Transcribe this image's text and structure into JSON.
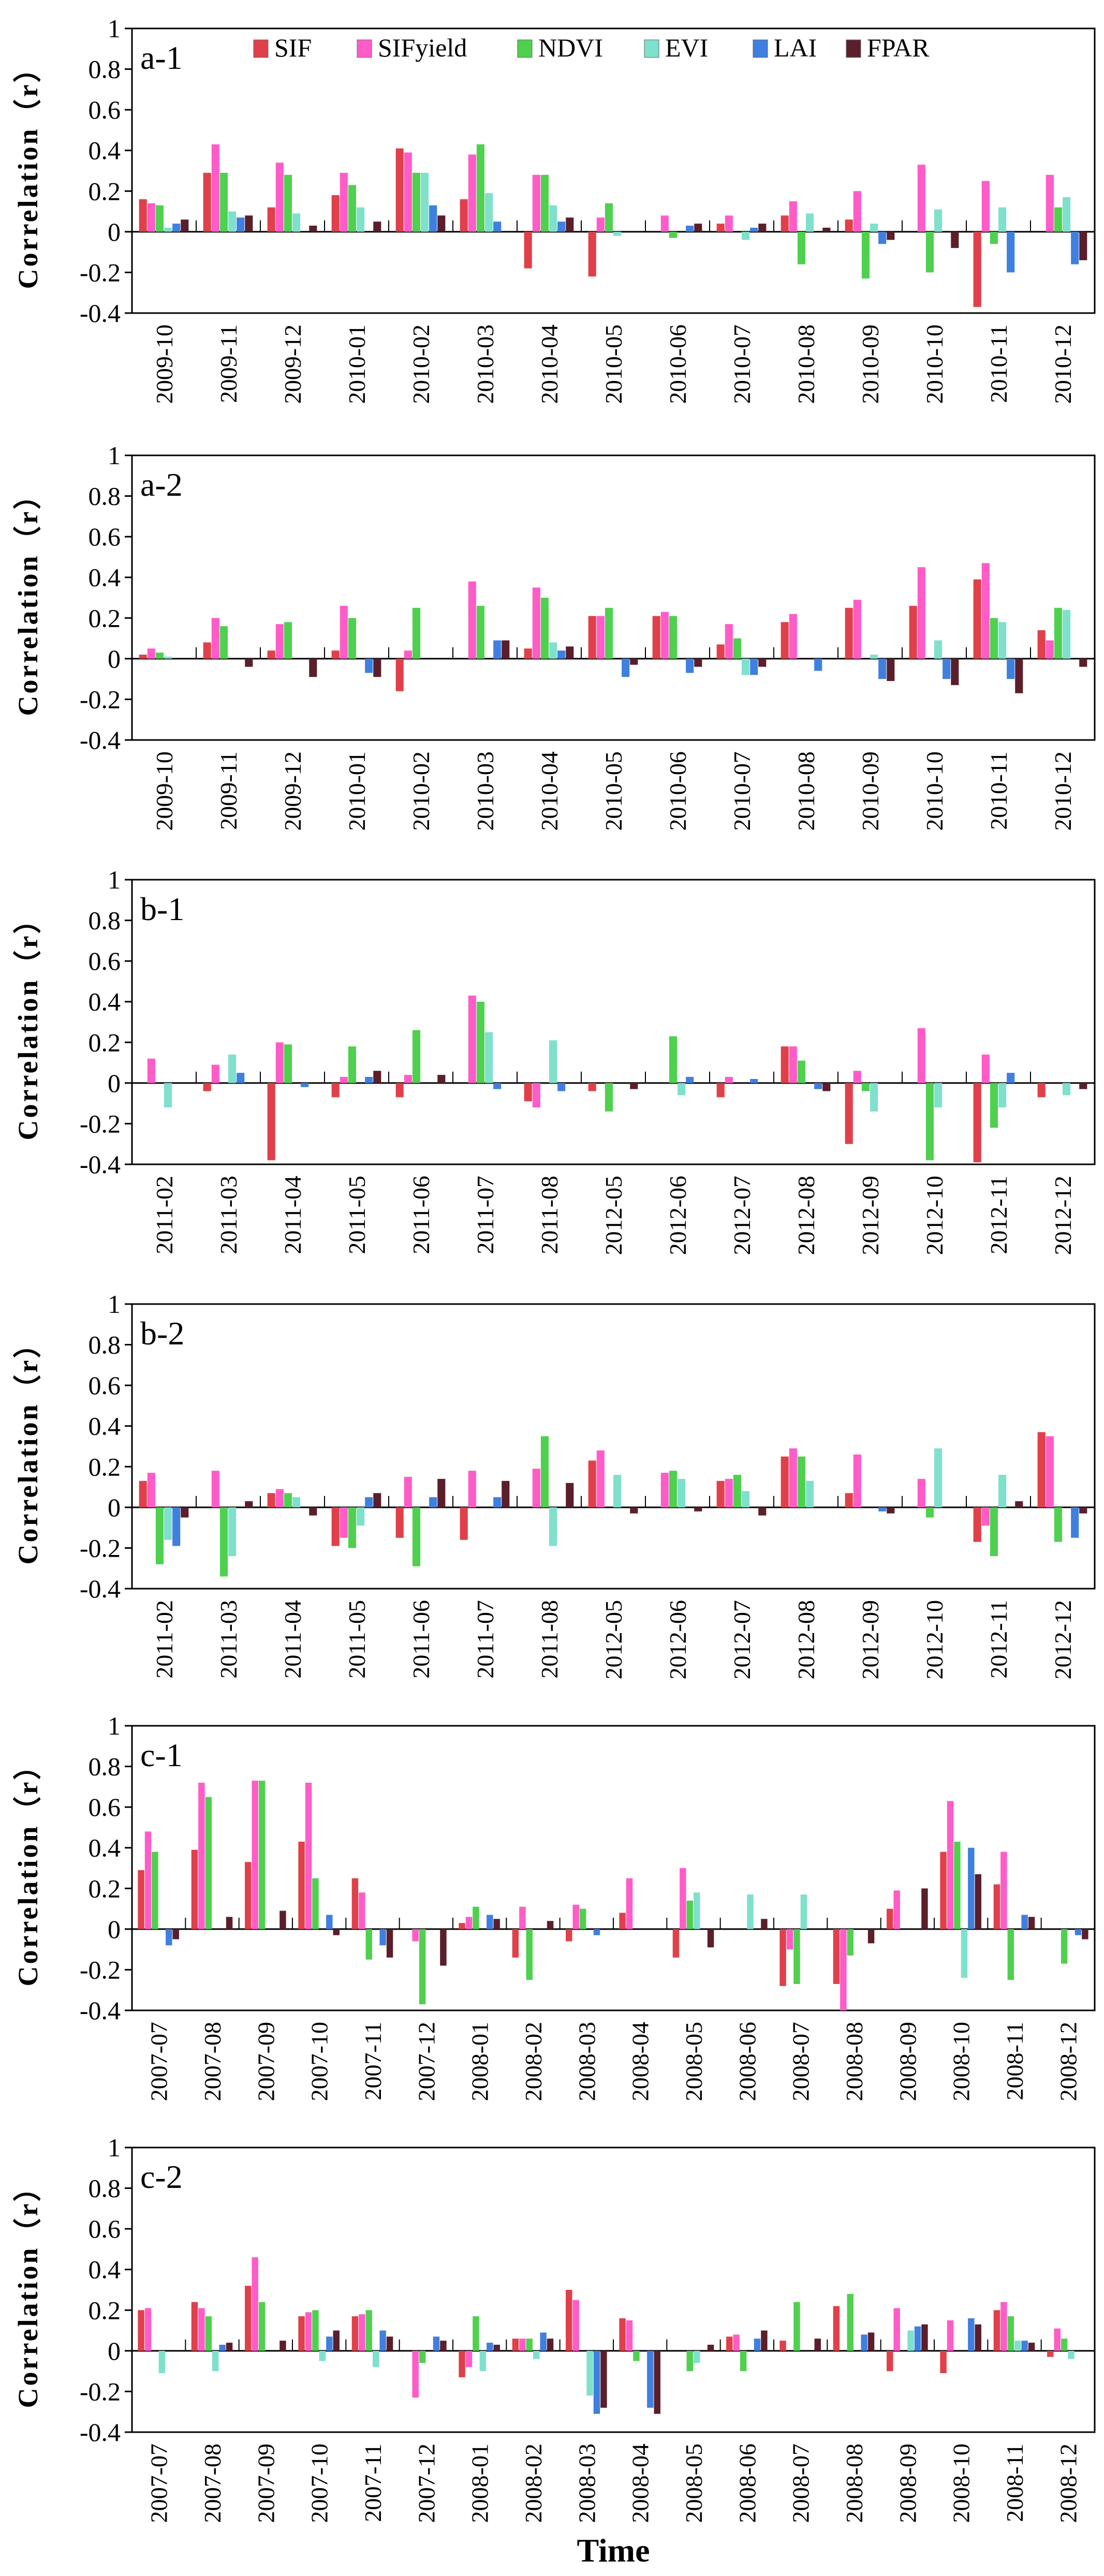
{
  "figure": {
    "xlabel": "Time"
  },
  "legend": {
    "items": [
      {
        "name": "SIF",
        "color": "#e0404a"
      },
      {
        "name": "SIFyield",
        "color": "#ff5cc8"
      },
      {
        "name": "NDVI",
        "color": "#4fd04f"
      },
      {
        "name": "EVI",
        "color": "#7fe0cc"
      },
      {
        "name": "LAI",
        "color": "#3f7fe0"
      },
      {
        "name": "FPAR",
        "color": "#5a1f2a"
      }
    ]
  },
  "chart_data": [
    {
      "type": "bar",
      "label": "a-1",
      "ylabel": "Correlation（r）",
      "ylim": [
        -0.4,
        1
      ],
      "yticks": [
        1,
        0.8,
        0.6,
        0.4,
        0.2,
        0,
        -0.2,
        -0.4
      ],
      "categories": [
        "2009-10",
        "2009-11",
        "2009-12",
        "2010-01",
        "2010-02",
        "2010-03",
        "2010-04",
        "2010-05",
        "2010-06",
        "2010-07",
        "2010-08",
        "2010-09",
        "2010-10",
        "2010-11",
        "2010-12"
      ],
      "series": [
        {
          "name": "SIF",
          "values": [
            0.16,
            0.29,
            0.12,
            0.18,
            0.41,
            0.16,
            -0.18,
            -0.22,
            0.0,
            0.04,
            0.08,
            0.06,
            0.0,
            -0.37,
            0.0
          ]
        },
        {
          "name": "SIFyield",
          "values": [
            0.14,
            0.43,
            0.34,
            0.29,
            0.39,
            0.38,
            0.28,
            0.07,
            0.08,
            0.08,
            0.15,
            0.2,
            0.33,
            0.25,
            0.28
          ]
        },
        {
          "name": "NDVI",
          "values": [
            0.13,
            0.29,
            0.28,
            0.23,
            0.29,
            0.43,
            0.28,
            0.14,
            -0.03,
            0.0,
            -0.16,
            -0.23,
            -0.2,
            -0.06,
            0.12
          ]
        },
        {
          "name": "EVI",
          "values": [
            0.02,
            0.1,
            0.09,
            0.12,
            0.29,
            0.19,
            0.13,
            -0.02,
            0.0,
            -0.04,
            0.09,
            0.04,
            0.11,
            0.12,
            0.17
          ]
        },
        {
          "name": "LAI",
          "values": [
            0.04,
            0.07,
            0.0,
            0.0,
            0.13,
            0.05,
            0.05,
            0.0,
            0.03,
            0.02,
            0.0,
            -0.06,
            0.0,
            -0.2,
            -0.16
          ]
        },
        {
          "name": "FPAR",
          "values": [
            0.06,
            0.08,
            0.03,
            0.05,
            0.08,
            0.0,
            0.07,
            0.0,
            0.04,
            0.04,
            0.02,
            -0.04,
            -0.08,
            0.0,
            -0.14
          ]
        }
      ]
    },
    {
      "type": "bar",
      "label": "a-2",
      "ylabel": "Correlation（r）",
      "ylim": [
        -0.4,
        1
      ],
      "yticks": [
        1,
        0.8,
        0.6,
        0.4,
        0.2,
        0,
        -0.2,
        -0.4
      ],
      "categories": [
        "2009-10",
        "2009-11",
        "2009-12",
        "2010-01",
        "2010-02",
        "2010-03",
        "2010-04",
        "2010-05",
        "2010-06",
        "2010-07",
        "2010-08",
        "2010-09",
        "2010-10",
        "2010-11",
        "2010-12"
      ],
      "series": [
        {
          "name": "SIF",
          "values": [
            0.02,
            0.08,
            0.04,
            0.04,
            -0.16,
            0.0,
            0.05,
            0.21,
            0.21,
            0.07,
            0.18,
            0.25,
            0.26,
            0.39,
            0.14
          ]
        },
        {
          "name": "SIFyield",
          "values": [
            0.05,
            0.2,
            0.17,
            0.26,
            0.04,
            0.38,
            0.35,
            0.21,
            0.23,
            0.17,
            0.22,
            0.29,
            0.45,
            0.47,
            0.09
          ]
        },
        {
          "name": "NDVI",
          "values": [
            0.03,
            0.16,
            0.18,
            0.2,
            0.25,
            0.26,
            0.3,
            0.25,
            0.21,
            0.1,
            0.0,
            0.0,
            0.0,
            0.2,
            0.25
          ]
        },
        {
          "name": "EVI",
          "values": [
            0.01,
            0.0,
            0.0,
            0.0,
            0.0,
            0.0,
            0.08,
            0.0,
            0.0,
            -0.08,
            0.0,
            0.02,
            0.09,
            0.18,
            0.24
          ]
        },
        {
          "name": "LAI",
          "values": [
            0.0,
            0.0,
            0.0,
            -0.07,
            0.0,
            0.09,
            0.04,
            -0.09,
            -0.07,
            -0.08,
            -0.06,
            -0.1,
            -0.1,
            -0.1,
            0.0
          ]
        },
        {
          "name": "FPAR",
          "values": [
            0.0,
            -0.04,
            -0.09,
            -0.09,
            0.0,
            0.09,
            0.06,
            -0.03,
            -0.04,
            -0.04,
            0.0,
            -0.11,
            -0.13,
            -0.17,
            -0.04
          ]
        }
      ]
    },
    {
      "type": "bar",
      "label": "b-1",
      "ylabel": "Correlation（r）",
      "ylim": [
        -0.4,
        1
      ],
      "yticks": [
        1,
        0.8,
        0.6,
        0.4,
        0.2,
        0,
        -0.2,
        -0.4
      ],
      "categories": [
        "2011-02",
        "2011-03",
        "2011-04",
        "2011-05",
        "2011-06",
        "2011-07",
        "2011-08",
        "2012-05",
        "2012-06",
        "2012-07",
        "2012-08",
        "2012-09",
        "2012-10",
        "2012-11",
        "2012-12"
      ],
      "series": [
        {
          "name": "SIF",
          "values": [
            0.0,
            -0.04,
            -0.38,
            -0.07,
            -0.07,
            0.0,
            -0.09,
            -0.04,
            0.0,
            -0.07,
            0.18,
            -0.3,
            0.0,
            -0.39,
            -0.07
          ]
        },
        {
          "name": "SIFyield",
          "values": [
            0.12,
            0.09,
            0.2,
            0.03,
            0.04,
            0.43,
            -0.12,
            0.0,
            0.0,
            0.03,
            0.18,
            0.06,
            0.27,
            0.14,
            0.0
          ]
        },
        {
          "name": "NDVI",
          "values": [
            0.0,
            0.0,
            0.19,
            0.18,
            0.26,
            0.4,
            0.0,
            -0.14,
            0.23,
            0.0,
            0.11,
            -0.04,
            -0.38,
            -0.22,
            0.0
          ]
        },
        {
          "name": "EVI",
          "values": [
            -0.12,
            0.14,
            0.0,
            0.0,
            0.0,
            0.25,
            0.21,
            0.0,
            -0.06,
            0.0,
            0.0,
            -0.14,
            -0.12,
            -0.12,
            -0.06
          ]
        },
        {
          "name": "LAI",
          "values": [
            0.0,
            0.05,
            -0.02,
            0.03,
            0.0,
            -0.03,
            -0.04,
            0.0,
            0.03,
            0.02,
            -0.03,
            0.0,
            0.0,
            0.05,
            0.0
          ]
        },
        {
          "name": "FPAR",
          "values": [
            0.0,
            0.0,
            0.0,
            0.06,
            0.04,
            0.0,
            0.0,
            -0.03,
            0.0,
            0.0,
            -0.04,
            0.0,
            0.0,
            0.0,
            -0.03
          ]
        }
      ]
    },
    {
      "type": "bar",
      "label": "b-2",
      "ylabel": "Correlation（r）",
      "ylim": [
        -0.4,
        1
      ],
      "yticks": [
        1,
        0.8,
        0.6,
        0.4,
        0.2,
        0,
        -0.2,
        -0.4
      ],
      "categories": [
        "2011-02",
        "2011-03",
        "2011-04",
        "2011-05",
        "2011-06",
        "2011-07",
        "2011-08",
        "2012-05",
        "2012-06",
        "2012-07",
        "2012-08",
        "2012-09",
        "2012-10",
        "2012-11",
        "2012-12"
      ],
      "series": [
        {
          "name": "SIF",
          "values": [
            0.13,
            0.0,
            0.07,
            -0.19,
            -0.15,
            -0.16,
            0.0,
            0.23,
            0.0,
            0.13,
            0.25,
            0.07,
            0.0,
            -0.17,
            0.37
          ]
        },
        {
          "name": "SIFyield",
          "values": [
            0.17,
            0.18,
            0.09,
            -0.15,
            0.15,
            0.18,
            0.19,
            0.28,
            0.17,
            0.14,
            0.29,
            0.26,
            0.14,
            -0.09,
            0.35
          ]
        },
        {
          "name": "NDVI",
          "values": [
            -0.28,
            -0.34,
            0.07,
            -0.2,
            -0.29,
            0.0,
            0.35,
            0.0,
            0.18,
            0.16,
            0.25,
            0.0,
            -0.05,
            -0.24,
            -0.17
          ]
        },
        {
          "name": "EVI",
          "values": [
            -0.16,
            -0.24,
            0.05,
            -0.09,
            0.0,
            0.0,
            -0.19,
            0.16,
            0.14,
            0.08,
            0.13,
            0.0,
            0.29,
            0.16,
            0.0
          ]
        },
        {
          "name": "LAI",
          "values": [
            -0.19,
            0.0,
            0.0,
            0.05,
            0.05,
            0.05,
            0.0,
            0.0,
            0.0,
            0.0,
            0.0,
            -0.02,
            0.0,
            0.0,
            -0.15
          ]
        },
        {
          "name": "FPAR",
          "values": [
            -0.05,
            0.03,
            -0.04,
            0.07,
            0.14,
            0.13,
            0.12,
            -0.03,
            -0.02,
            -0.04,
            0.0,
            -0.03,
            0.0,
            0.03,
            -0.03
          ]
        }
      ]
    },
    {
      "type": "bar",
      "label": "c-1",
      "ylabel": "Correlation（r）",
      "ylim": [
        -0.4,
        1
      ],
      "yticks": [
        1,
        0.8,
        0.6,
        0.4,
        0.2,
        0,
        -0.2,
        -0.4
      ],
      "categories": [
        "2007-07",
        "2007-08",
        "2007-09",
        "2007-10",
        "2007-11",
        "2007-12",
        "2008-01",
        "2008-02",
        "2008-03",
        "2008-04",
        "2008-05",
        "2008-06",
        "2008-07",
        "2008-08",
        "2008-09",
        "2008-10",
        "2008-11",
        "2008-12"
      ],
      "series": [
        {
          "name": "SIF",
          "values": [
            0.29,
            0.39,
            0.33,
            0.43,
            0.25,
            0.0,
            0.03,
            -0.14,
            -0.06,
            0.08,
            -0.14,
            0.0,
            -0.28,
            -0.27,
            0.1,
            0.38,
            0.22,
            0.0
          ]
        },
        {
          "name": "SIFyield",
          "values": [
            0.48,
            0.72,
            0.73,
            0.72,
            0.18,
            -0.06,
            0.06,
            0.11,
            0.12,
            0.25,
            0.3,
            0.0,
            -0.1,
            -0.4,
            0.19,
            0.63,
            0.38,
            0.0
          ]
        },
        {
          "name": "NDVI",
          "values": [
            0.38,
            0.65,
            0.73,
            0.25,
            -0.15,
            -0.37,
            0.11,
            -0.25,
            0.1,
            0.0,
            0.14,
            0.0,
            -0.27,
            -0.13,
            0.0,
            0.43,
            -0.25,
            -0.17
          ]
        },
        {
          "name": "EVI",
          "values": [
            0.0,
            0.0,
            0.0,
            0.0,
            0.0,
            0.0,
            0.0,
            0.0,
            0.0,
            0.0,
            0.18,
            0.17,
            0.17,
            0.0,
            0.0,
            -0.24,
            0.0,
            0.0
          ]
        },
        {
          "name": "LAI",
          "values": [
            -0.08,
            0.0,
            0.0,
            0.07,
            -0.08,
            0.0,
            0.07,
            0.0,
            -0.03,
            0.0,
            0.0,
            0.0,
            0.0,
            0.0,
            0.0,
            0.4,
            0.07,
            -0.03
          ]
        },
        {
          "name": "FPAR",
          "values": [
            -0.05,
            0.06,
            0.09,
            -0.03,
            -0.14,
            -0.18,
            0.05,
            0.04,
            0.0,
            0.0,
            -0.09,
            0.05,
            0.0,
            -0.07,
            0.2,
            0.27,
            0.06,
            -0.05
          ]
        }
      ]
    },
    {
      "type": "bar",
      "label": "c-2",
      "ylabel": "Correlation（r）",
      "ylim": [
        -0.4,
        1
      ],
      "yticks": [
        1,
        0.8,
        0.6,
        0.4,
        0.2,
        0,
        -0.2,
        -0.4
      ],
      "categories": [
        "2007-07",
        "2007-08",
        "2007-09",
        "2007-10",
        "2007-11",
        "2007-12",
        "2008-01",
        "2008-02",
        "2008-03",
        "2008-04",
        "2008-05",
        "2008-06",
        "2008-07",
        "2008-08",
        "2008-09",
        "2008-10",
        "2008-11",
        "2008-12"
      ],
      "series": [
        {
          "name": "SIF",
          "values": [
            0.2,
            0.24,
            0.32,
            0.17,
            0.17,
            0.0,
            -0.13,
            0.06,
            0.3,
            0.16,
            0.0,
            0.07,
            0.05,
            0.22,
            -0.1,
            -0.11,
            0.2,
            -0.03
          ]
        },
        {
          "name": "SIFyield",
          "values": [
            0.21,
            0.21,
            0.46,
            0.19,
            0.18,
            -0.23,
            -0.08,
            0.06,
            0.25,
            0.15,
            0.0,
            0.08,
            0.0,
            0.0,
            0.21,
            0.15,
            0.24,
            0.11
          ]
        },
        {
          "name": "NDVI",
          "values": [
            0.0,
            0.17,
            0.24,
            0.2,
            0.2,
            -0.06,
            0.17,
            0.06,
            0.0,
            -0.05,
            -0.1,
            -0.1,
            0.24,
            0.28,
            0.0,
            0.0,
            0.17,
            0.06
          ]
        },
        {
          "name": "EVI",
          "values": [
            -0.11,
            -0.1,
            0.0,
            -0.05,
            -0.08,
            0.0,
            -0.1,
            -0.04,
            -0.22,
            0.0,
            -0.06,
            0.0,
            0.0,
            0.0,
            0.1,
            0.0,
            0.05,
            -0.04
          ]
        },
        {
          "name": "LAI",
          "values": [
            0.0,
            0.03,
            0.0,
            0.07,
            0.1,
            0.07,
            0.04,
            0.09,
            -0.31,
            -0.28,
            0.0,
            0.06,
            0.0,
            0.08,
            0.12,
            0.16,
            0.05,
            0.0
          ]
        },
        {
          "name": "FPAR",
          "values": [
            0.0,
            0.04,
            0.05,
            0.1,
            0.07,
            0.05,
            0.03,
            0.06,
            -0.28,
            -0.31,
            0.03,
            0.1,
            0.06,
            0.09,
            0.13,
            0.13,
            0.04,
            0.0
          ]
        }
      ]
    }
  ]
}
